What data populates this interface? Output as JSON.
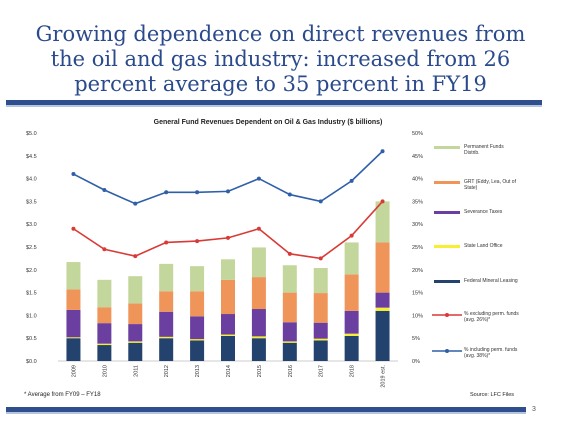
{
  "slide": {
    "title_line1": "Growing dependence on direct revenues from",
    "title_line2": "the oil and gas industry: increased from 26",
    "title_line3": "percent average to 35 percent in FY19",
    "footnote": "* Average from FY09 – FY18",
    "source": "Source:  LFC Files",
    "page_number": "3",
    "title_color": "#2a4a8c",
    "rule_color": "#2f4e8e"
  },
  "chart_data": {
    "type": "bar",
    "stacked": true,
    "title": "General Fund Revenues Dependent on Oil & Gas Industry ($ billions)",
    "categories": [
      "2009",
      "2010",
      "2011",
      "2012",
      "2013",
      "2014",
      "2015",
      "2016",
      "2017",
      "2018",
      "2019 est."
    ],
    "y_left": {
      "range": [
        0,
        5.0
      ],
      "ticks": [
        0,
        0.5,
        1.0,
        1.5,
        2.0,
        2.5,
        3.0,
        3.5,
        4.0,
        4.5,
        5.0
      ],
      "tick_labels": [
        "$0.0",
        "$0.5",
        "$1.0",
        "$1.5",
        "$2.0",
        "$2.5",
        "$3.0",
        "$3.5",
        "$4.0",
        "$4.5",
        "$5.0"
      ]
    },
    "y_right": {
      "range": [
        0,
        50
      ],
      "ticks": [
        0,
        5,
        10,
        15,
        20,
        25,
        30,
        35,
        40,
        45,
        50
      ],
      "tick_labels": [
        "0%",
        "5%",
        "10%",
        "15%",
        "20%",
        "25%",
        "30%",
        "35%",
        "40%",
        "45%",
        "50%"
      ]
    },
    "series": [
      {
        "name": "Federal Mineral Leasing",
        "color": "#24426e",
        "values": [
          0.5,
          0.35,
          0.4,
          0.5,
          0.45,
          0.55,
          0.5,
          0.4,
          0.45,
          0.55,
          1.1
        ]
      },
      {
        "name": "State Land Office",
        "color": "#f7ef2f",
        "values": [
          0.02,
          0.03,
          0.03,
          0.03,
          0.03,
          0.03,
          0.04,
          0.03,
          0.04,
          0.05,
          0.07
        ]
      },
      {
        "name": "Severance Taxes",
        "color": "#6a3fa0",
        "values": [
          0.6,
          0.45,
          0.38,
          0.55,
          0.5,
          0.45,
          0.6,
          0.42,
          0.35,
          0.5,
          0.33
        ]
      },
      {
        "name": "GRT (Eddy, Lea, Out of State)",
        "color": "#f0955a",
        "values": [
          0.45,
          0.35,
          0.45,
          0.45,
          0.55,
          0.75,
          0.7,
          0.65,
          0.65,
          0.8,
          1.1
        ]
      },
      {
        "name": "Permanent Funds Distrib.",
        "color": "#c3d69b",
        "values": [
          0.6,
          0.6,
          0.6,
          0.6,
          0.55,
          0.45,
          0.65,
          0.6,
          0.55,
          0.7,
          0.9
        ]
      }
    ],
    "lines": [
      {
        "name": "% excluding perm. funds (avg. 26%)*",
        "color": "#d93a36",
        "axis": "right",
        "values": [
          29,
          24.5,
          23,
          26,
          26.3,
          27,
          29,
          23.5,
          22.5,
          27.5,
          35
        ]
      },
      {
        "name": "% including perm. funds (avg. 38%)*",
        "color": "#2e5fa8",
        "axis": "right",
        "values": [
          41,
          37.5,
          34.5,
          37,
          37,
          37.2,
          40,
          36.5,
          35,
          39.5,
          46
        ]
      }
    ],
    "legend": [
      {
        "label_line1": "Permanent Funds",
        "label_line2": "Distrib.",
        "kind": "swatch",
        "color": "#c3d69b"
      },
      {
        "label_line1": "GRT (Eddy, Lea, Out of",
        "label_line2": "State)",
        "kind": "swatch",
        "color": "#f0955a"
      },
      {
        "label_line1": "Severance Taxes",
        "label_line2": "",
        "kind": "swatch",
        "color": "#6a3fa0"
      },
      {
        "label_line1": "State Land Office",
        "label_line2": "",
        "kind": "swatch",
        "color": "#f7ef2f"
      },
      {
        "label_line1": "Federal Mineral Leasing",
        "label_line2": "",
        "kind": "swatch",
        "color": "#24426e"
      },
      {
        "label_line1": "% excluding perm. funds",
        "label_line2": "(avg. 26%)*",
        "kind": "line",
        "color": "#d93a36"
      },
      {
        "label_line1": "% including perm. funds",
        "label_line2": "(avg. 38%)*",
        "kind": "line",
        "color": "#2e5fa8"
      }
    ],
    "legend_position": "right",
    "grid": false
  }
}
